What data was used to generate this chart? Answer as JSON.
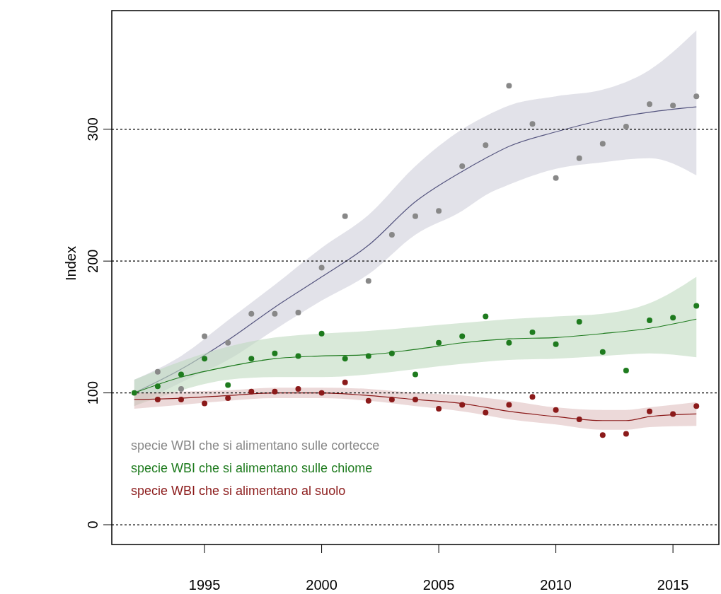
{
  "chart_data": {
    "type": "scatter",
    "ylabel": "Index",
    "xlim": [
      1991.04,
      2016.96
    ],
    "ylim": [
      -15,
      390
    ],
    "xticks": [
      1995,
      2000,
      2005,
      2010,
      2015
    ],
    "yticks": [
      0,
      100,
      200,
      300
    ],
    "grid": "y",
    "legend": "bottom left",
    "marker": "circle",
    "series": [
      {
        "name": "specie WBI che si alimentano sulle cortecce",
        "color": "#888888",
        "x": [
          1993,
          1994,
          1995,
          1996,
          1997,
          1998,
          1999,
          2000,
          2001,
          2002,
          2003,
          2004,
          2005,
          2006,
          2007,
          2008,
          2009,
          2010,
          2011,
          2012,
          2013,
          2014,
          2015,
          2016
        ],
        "values": [
          116,
          103,
          143,
          138,
          160,
          160,
          161,
          195,
          234,
          185,
          220,
          234,
          238,
          272,
          288,
          333,
          304,
          263,
          278,
          289,
          302,
          319,
          318,
          325
        ]
      },
      {
        "name": "specie WBI che si alimentano sulle chiome",
        "color": "#1e7b1e",
        "x": [
          1992,
          1993,
          1994,
          1995,
          1996,
          1997,
          1998,
          1999,
          2000,
          2001,
          2002,
          2003,
          2004,
          2005,
          2006,
          2007,
          2008,
          2009,
          2010,
          2011,
          2012,
          2013,
          2014,
          2015,
          2016
        ],
        "values": [
          100,
          105,
          114,
          126,
          106,
          126,
          130,
          128,
          145,
          126,
          128,
          130,
          114,
          138,
          143,
          158,
          138,
          146,
          137,
          154,
          131,
          117,
          155,
          157,
          166
        ]
      },
      {
        "name": "specie WBI che si alimentano al suolo",
        "color": "#8b1a1a",
        "x": [
          1993,
          1994,
          1995,
          1996,
          1997,
          1998,
          1999,
          2000,
          2001,
          2002,
          2003,
          2004,
          2005,
          2006,
          2007,
          2008,
          2009,
          2010,
          2011,
          2012,
          2013,
          2014,
          2015,
          2016
        ],
        "values": [
          95,
          95,
          92,
          96,
          101,
          101,
          103,
          100,
          108,
          94,
          95,
          95,
          88,
          91,
          85,
          91,
          97,
          87,
          80,
          68,
          69,
          86,
          84,
          90
        ]
      },
      {
        "type": "line",
        "marker": "none",
        "color": "#55557f",
        "x": [
          1992,
          1994,
          1996,
          1998,
          2000,
          2002,
          2004,
          2006,
          2007,
          2008,
          2010,
          2012,
          2014,
          2016
        ],
        "values": [
          100,
          118,
          140,
          165,
          188,
          212,
          245,
          268,
          278,
          287,
          298,
          307,
          313,
          317
        ],
        "lower": [
          90,
          108,
          125,
          148,
          170,
          190,
          220,
          238,
          250,
          258,
          270,
          275,
          278,
          265
        ],
        "upper": [
          110,
          128,
          155,
          182,
          210,
          235,
          272,
          300,
          310,
          318,
          325,
          330,
          345,
          375
        ]
      },
      {
        "type": "line",
        "marker": "none",
        "color": "#1e7b1e",
        "x": [
          1992,
          1994,
          1996,
          1998,
          2000,
          2002,
          2004,
          2006,
          2008,
          2010,
          2012,
          2014,
          2016
        ],
        "values": [
          100,
          112,
          120,
          126,
          128,
          129,
          133,
          138,
          141,
          142,
          145,
          149,
          156
        ],
        "lower": [
          90,
          102,
          110,
          112,
          112,
          114,
          118,
          122,
          125,
          126,
          128,
          130,
          127
        ],
        "upper": [
          110,
          124,
          135,
          142,
          145,
          147,
          150,
          153,
          156,
          158,
          160,
          168,
          188
        ]
      },
      {
        "type": "line",
        "marker": "none",
        "color": "#8b1a1a",
        "x": [
          1992,
          1994,
          1996,
          1998,
          2000,
          2002,
          2004,
          2006,
          2008,
          2010,
          2012,
          2013,
          2014,
          2016
        ],
        "values": [
          95,
          96,
          98,
          100,
          100,
          98,
          95,
          92,
          86,
          82,
          79,
          79,
          82,
          84
        ],
        "lower": [
          88,
          91,
          94,
          96,
          96,
          94,
          90,
          86,
          80,
          76,
          72,
          72,
          74,
          75
        ],
        "upper": [
          100,
          101,
          102,
          104,
          104,
          103,
          100,
          98,
          94,
          89,
          87,
          87,
          89,
          93
        ]
      }
    ]
  }
}
